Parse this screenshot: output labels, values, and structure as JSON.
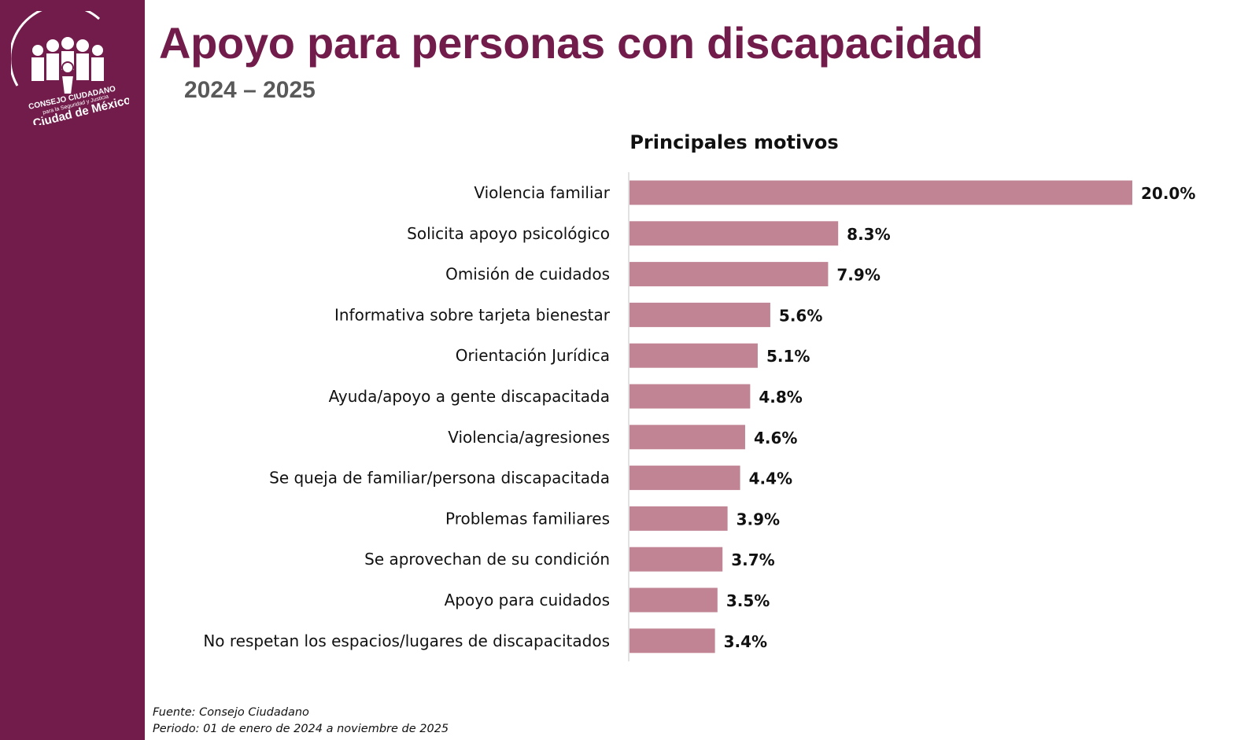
{
  "header": {
    "title": "Apoyo para personas con discapacidad",
    "subtitle": "2024 – 2025"
  },
  "logo": {
    "text_line1": "CONSEJO CIUDADANO",
    "text_line2": "para la Seguridad y Justicia",
    "text_line3": "Ciudad de México"
  },
  "colors": {
    "brand": "#721c4b",
    "bar": "#c08495"
  },
  "chart_data": {
    "type": "bar",
    "orientation": "horizontal",
    "title": "Principales motivos",
    "categories": [
      "Violencia familiar",
      "Solicita apoyo psicológico",
      "Omisión de cuidados",
      "Informativa sobre tarjeta bienestar",
      "Orientación Jurídica",
      "Ayuda/apoyo a gente discapacitada",
      "Violencia/agresiones",
      "Se queja de familiar/persona discapacitada",
      "Problemas familiares",
      "Se aprovechan de su condición",
      "Apoyo para cuidados",
      "No respetan los espacios/lugares de discapacitados"
    ],
    "values": [
      20.0,
      8.3,
      7.9,
      5.6,
      5.1,
      4.8,
      4.6,
      4.4,
      3.9,
      3.7,
      3.5,
      3.4
    ],
    "value_labels": [
      "20.0%",
      "8.3%",
      "7.9%",
      "5.6%",
      "5.1%",
      "4.8%",
      "4.6%",
      "4.4%",
      "3.9%",
      "3.7%",
      "3.5%",
      "3.4%"
    ],
    "xlim": [
      0,
      20
    ],
    "grid": false,
    "legend": "none"
  },
  "footer": {
    "source": "Fuente: Consejo Ciudadano",
    "period": "Periodo: 01 de enero de 2024 a noviembre de 2025"
  }
}
